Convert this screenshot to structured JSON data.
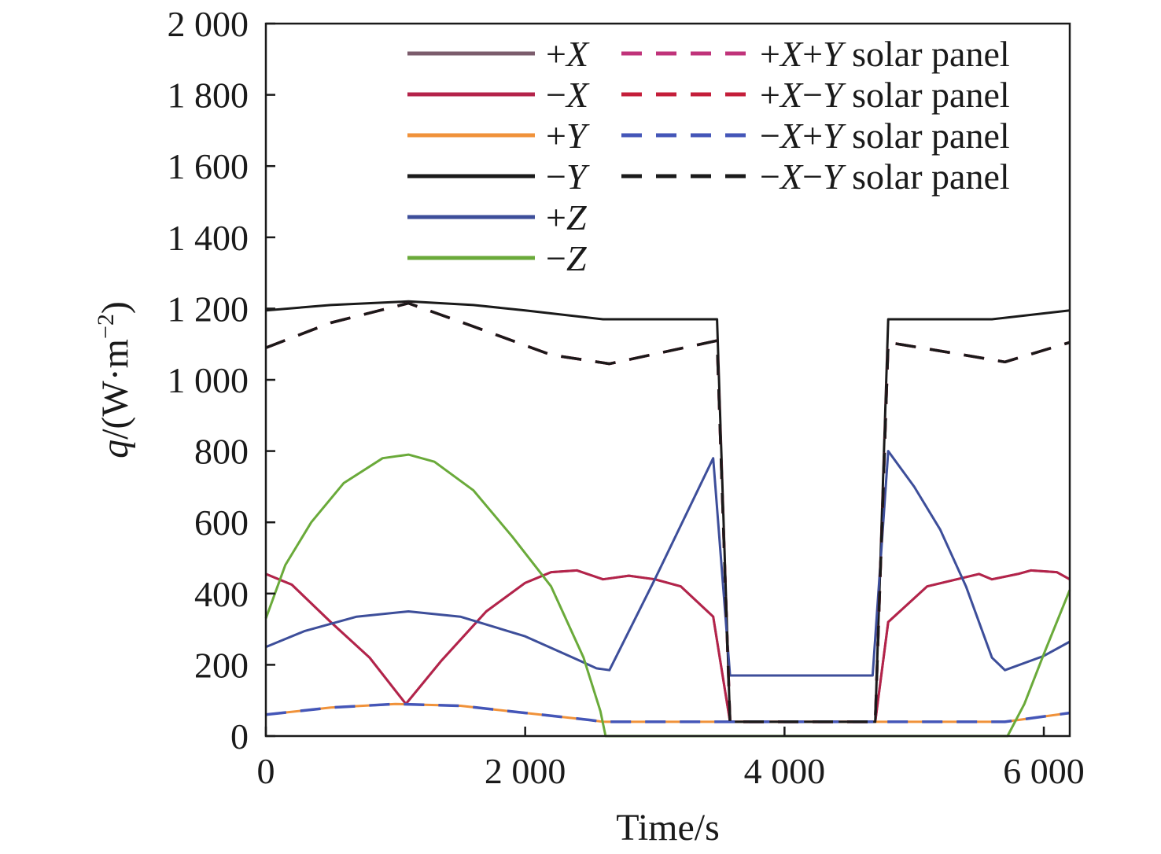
{
  "chart_data": {
    "type": "line",
    "xlabel": "Time/s",
    "ylabel_parts": [
      "q",
      "/(W·m",
      "−2",
      ")"
    ],
    "xlim": [
      0,
      6200
    ],
    "ylim": [
      0,
      2000
    ],
    "x_ticks": [
      0,
      2000,
      4000,
      6000
    ],
    "x_tick_labels": [
      "0",
      "2 000",
      "4 000",
      "6 000"
    ],
    "y_ticks": [
      0,
      200,
      400,
      600,
      800,
      1000,
      1200,
      1400,
      1600,
      1800,
      2000
    ],
    "y_tick_labels": [
      "0",
      "200",
      "400",
      "600",
      "800",
      "1 000",
      "1 200",
      "1 400",
      "1 600",
      "1 800",
      "2 000"
    ],
    "legend_placement": "top-right",
    "series": [
      {
        "key": "xp",
        "name": "+X",
        "color": "#7b5c6c",
        "dash": false,
        "points": [
          [
            0,
            455
          ],
          [
            200,
            425
          ],
          [
            500,
            320
          ],
          [
            800,
            220
          ],
          [
            1080,
            90
          ],
          [
            1350,
            210
          ],
          [
            1700,
            350
          ],
          [
            2000,
            430
          ],
          [
            2200,
            460
          ],
          [
            2400,
            465
          ],
          [
            2600,
            440
          ],
          [
            2800,
            450
          ],
          [
            3000,
            440
          ],
          [
            3200,
            420
          ],
          [
            3450,
            335
          ],
          [
            3580,
            40
          ],
          [
            4700,
            40
          ],
          [
            4800,
            320
          ],
          [
            5100,
            420
          ],
          [
            5500,
            455
          ],
          [
            5600,
            440
          ],
          [
            5800,
            455
          ],
          [
            5900,
            465
          ],
          [
            6100,
            460
          ],
          [
            6200,
            440
          ]
        ]
      },
      {
        "key": "xm",
        "name": "−X",
        "color": "#b4234a",
        "dash": false,
        "points": [
          [
            0,
            455
          ],
          [
            200,
            425
          ],
          [
            500,
            320
          ],
          [
            800,
            220
          ],
          [
            1080,
            90
          ],
          [
            1350,
            210
          ],
          [
            1700,
            350
          ],
          [
            2000,
            430
          ],
          [
            2200,
            460
          ],
          [
            2400,
            465
          ],
          [
            2600,
            440
          ],
          [
            2800,
            450
          ],
          [
            3000,
            440
          ],
          [
            3200,
            420
          ],
          [
            3450,
            335
          ],
          [
            3580,
            40
          ],
          [
            4700,
            40
          ],
          [
            4800,
            320
          ],
          [
            5100,
            420
          ],
          [
            5500,
            455
          ],
          [
            5600,
            440
          ],
          [
            5800,
            455
          ],
          [
            5900,
            465
          ],
          [
            6100,
            460
          ],
          [
            6200,
            440
          ]
        ]
      },
      {
        "key": "yp",
        "name": "+Y",
        "color": "#f0923a",
        "dash": false,
        "points": [
          [
            0,
            60
          ],
          [
            500,
            80
          ],
          [
            1000,
            90
          ],
          [
            1500,
            85
          ],
          [
            2000,
            65
          ],
          [
            2500,
            45
          ],
          [
            2600,
            40
          ],
          [
            3580,
            40
          ],
          [
            4700,
            40
          ],
          [
            5700,
            40
          ],
          [
            6000,
            55
          ],
          [
            6200,
            65
          ]
        ]
      },
      {
        "key": "ym",
        "name": "−Y",
        "color": "#1a1a1a",
        "dash": false,
        "points": [
          [
            0,
            1195
          ],
          [
            500,
            1210
          ],
          [
            1100,
            1220
          ],
          [
            1600,
            1210
          ],
          [
            2000,
            1195
          ],
          [
            2600,
            1170
          ],
          [
            3480,
            1170
          ],
          [
            3580,
            40
          ],
          [
            4700,
            40
          ],
          [
            4800,
            1170
          ],
          [
            5600,
            1170
          ],
          [
            6200,
            1195
          ]
        ]
      },
      {
        "key": "zp",
        "name": "+Z",
        "color": "#3d4e9a",
        "dash": false,
        "points": [
          [
            0,
            250
          ],
          [
            300,
            295
          ],
          [
            700,
            335
          ],
          [
            1100,
            350
          ],
          [
            1500,
            335
          ],
          [
            2000,
            280
          ],
          [
            2400,
            215
          ],
          [
            2550,
            190
          ],
          [
            2650,
            185
          ],
          [
            3000,
            440
          ],
          [
            3450,
            780
          ],
          [
            3580,
            170
          ],
          [
            4680,
            170
          ],
          [
            4800,
            800
          ],
          [
            5000,
            700
          ],
          [
            5200,
            580
          ],
          [
            5400,
            420
          ],
          [
            5600,
            220
          ],
          [
            5700,
            185
          ],
          [
            6000,
            225
          ],
          [
            6200,
            265
          ]
        ]
      },
      {
        "key": "zm",
        "name": "−Z",
        "color": "#6aaa3a",
        "dash": false,
        "points": [
          [
            0,
            330
          ],
          [
            150,
            480
          ],
          [
            350,
            600
          ],
          [
            600,
            710
          ],
          [
            900,
            780
          ],
          [
            1100,
            790
          ],
          [
            1300,
            770
          ],
          [
            1600,
            690
          ],
          [
            1900,
            560
          ],
          [
            2200,
            420
          ],
          [
            2450,
            220
          ],
          [
            2580,
            70
          ],
          [
            2620,
            0
          ],
          [
            5720,
            0
          ],
          [
            5850,
            90
          ],
          [
            6000,
            230
          ],
          [
            6200,
            410
          ]
        ]
      },
      {
        "key": "xpyp",
        "name": "+X+Y solar panel",
        "color": "#c0337a",
        "dash": true,
        "points": [
          [
            0,
            1090
          ],
          [
            500,
            1160
          ],
          [
            1100,
            1215
          ],
          [
            1600,
            1150
          ],
          [
            2200,
            1070
          ],
          [
            2650,
            1045
          ],
          [
            3480,
            1110
          ],
          [
            3580,
            40
          ],
          [
            4700,
            40
          ],
          [
            4800,
            1105
          ],
          [
            5300,
            1075
          ],
          [
            5700,
            1050
          ],
          [
            6200,
            1105
          ]
        ]
      },
      {
        "key": "xmym",
        "name": "+X−Y solar panel",
        "color": "#c41e3a",
        "dash": true,
        "points": [
          [
            0,
            1090
          ],
          [
            500,
            1160
          ],
          [
            1100,
            1215
          ],
          [
            1600,
            1150
          ],
          [
            2200,
            1070
          ],
          [
            2650,
            1045
          ],
          [
            3480,
            1110
          ],
          [
            3580,
            40
          ],
          [
            4700,
            40
          ],
          [
            4800,
            1105
          ],
          [
            5300,
            1075
          ],
          [
            5700,
            1050
          ],
          [
            6200,
            1105
          ]
        ]
      },
      {
        "key": "xmyp",
        "name": "−X+Y solar panel",
        "color": "#4456b8",
        "dash": true,
        "points": [
          [
            0,
            60
          ],
          [
            500,
            80
          ],
          [
            1000,
            90
          ],
          [
            1500,
            85
          ],
          [
            2000,
            65
          ],
          [
            2500,
            45
          ],
          [
            2600,
            40
          ],
          [
            3580,
            40
          ],
          [
            4700,
            40
          ],
          [
            5700,
            40
          ],
          [
            6000,
            55
          ],
          [
            6200,
            65
          ]
        ]
      },
      {
        "key": "xmym2",
        "name": "−X−Y solar panel",
        "color": "#1a1a1a",
        "dash": true,
        "points": [
          [
            0,
            1090
          ],
          [
            500,
            1160
          ],
          [
            1100,
            1215
          ],
          [
            1600,
            1150
          ],
          [
            2200,
            1070
          ],
          [
            2650,
            1045
          ],
          [
            3480,
            1110
          ],
          [
            3580,
            40
          ],
          [
            4700,
            40
          ],
          [
            4800,
            1105
          ],
          [
            5300,
            1075
          ],
          [
            5700,
            1050
          ],
          [
            6200,
            1105
          ]
        ]
      }
    ],
    "legend": [
      {
        "solid": "+X",
        "dashed": "+X+Y solar panel"
      },
      {
        "solid": "−X",
        "dashed": "+X−Y solar panel"
      },
      {
        "solid": "+Y",
        "dashed": "−X+Y solar panel"
      },
      {
        "solid": "−Y",
        "dashed": "−X−Y solar panel"
      },
      {
        "solid": "+Z",
        "dashed": ""
      },
      {
        "solid": "−Z",
        "dashed": ""
      }
    ]
  }
}
